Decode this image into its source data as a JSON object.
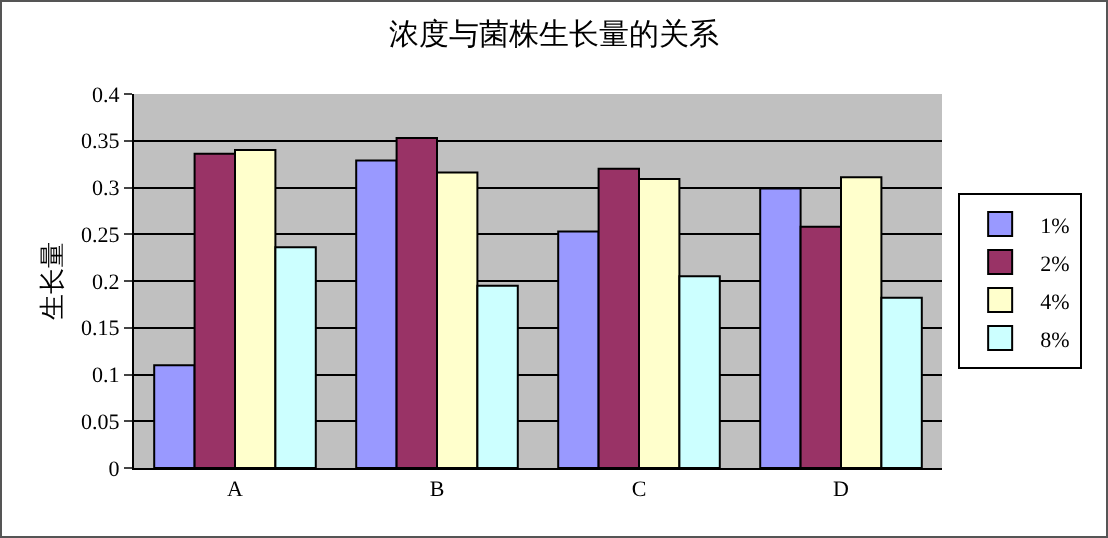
{
  "chart_data": {
    "type": "bar",
    "title": "浓度与菌株生长量的关系",
    "ylabel": "生长量",
    "categories": [
      "A",
      "B",
      "C",
      "D"
    ],
    "series": [
      {
        "name": "1%",
        "color": "#9999ff",
        "values": [
          0.11,
          0.329,
          0.253,
          0.299
        ]
      },
      {
        "name": "2%",
        "color": "#993366",
        "values": [
          0.336,
          0.353,
          0.32,
          0.258
        ]
      },
      {
        "name": "4%",
        "color": "#ffffcc",
        "values": [
          0.34,
          0.316,
          0.309,
          0.311
        ]
      },
      {
        "name": "8%",
        "color": "#ccffff",
        "values": [
          0.236,
          0.195,
          0.205,
          0.182
        ]
      }
    ],
    "ylim": [
      0,
      0.4
    ],
    "yticks": [
      0,
      0.05,
      0.1,
      0.15,
      0.2,
      0.25,
      0.3,
      0.35,
      0.4
    ],
    "grid": "y",
    "legend": "right"
  }
}
